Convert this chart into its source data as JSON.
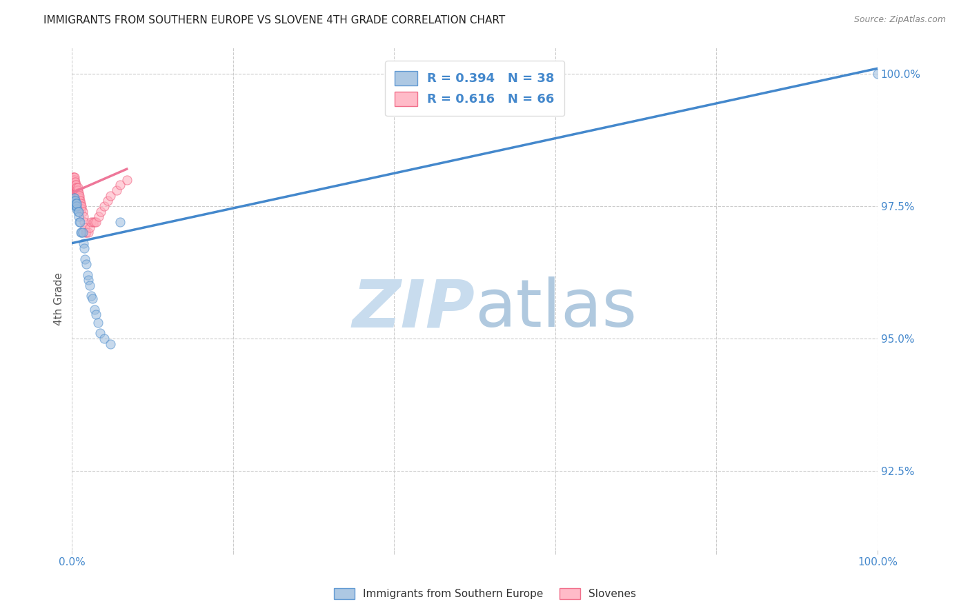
{
  "title": "IMMIGRANTS FROM SOUTHERN EUROPE VS SLOVENE 4TH GRADE CORRELATION CHART",
  "source": "Source: ZipAtlas.com",
  "ylabel_label": "4th Grade",
  "legend": {
    "blue_R": "0.394",
    "blue_N": "38",
    "pink_R": "0.616",
    "pink_N": "66"
  },
  "legend_label_blue": "Immigrants from Southern Europe",
  "legend_label_pink": "Slovenes",
  "xaxis": [
    0.0,
    1.0
  ],
  "yaxis": [
    0.91,
    1.005
  ],
  "yticks": [
    0.925,
    0.95,
    0.975,
    1.0
  ],
  "ytick_labels": [
    "92.5%",
    "95.0%",
    "97.5%",
    "100.0%"
  ],
  "xticks": [
    0.0,
    0.2,
    0.4,
    0.6,
    0.8,
    1.0
  ],
  "xtick_labels": [
    "0.0%",
    "",
    "",
    "",
    "",
    "100.0%"
  ],
  "blue_scatter_x": [
    0.001,
    0.002,
    0.002,
    0.003,
    0.003,
    0.003,
    0.004,
    0.004,
    0.005,
    0.005,
    0.006,
    0.006,
    0.006,
    0.007,
    0.008,
    0.008,
    0.009,
    0.01,
    0.011,
    0.012,
    0.013,
    0.014,
    0.015,
    0.016,
    0.018,
    0.019,
    0.02,
    0.022,
    0.024,
    0.025,
    0.028,
    0.03,
    0.032,
    0.035,
    0.04,
    0.048,
    0.06,
    1.0
  ],
  "blue_scatter_y": [
    0.9755,
    0.976,
    0.9765,
    0.9755,
    0.976,
    0.9765,
    0.975,
    0.976,
    0.975,
    0.9755,
    0.9745,
    0.975,
    0.9755,
    0.974,
    0.973,
    0.974,
    0.972,
    0.972,
    0.97,
    0.97,
    0.97,
    0.968,
    0.967,
    0.965,
    0.964,
    0.962,
    0.961,
    0.96,
    0.958,
    0.9575,
    0.9555,
    0.9545,
    0.953,
    0.951,
    0.95,
    0.949,
    0.972,
    1.0
  ],
  "pink_scatter_x": [
    0.0005,
    0.001,
    0.001,
    0.001,
    0.0015,
    0.002,
    0.002,
    0.002,
    0.002,
    0.0025,
    0.003,
    0.003,
    0.003,
    0.003,
    0.003,
    0.0035,
    0.004,
    0.004,
    0.004,
    0.004,
    0.0045,
    0.005,
    0.005,
    0.005,
    0.005,
    0.0055,
    0.006,
    0.006,
    0.006,
    0.006,
    0.007,
    0.007,
    0.007,
    0.007,
    0.008,
    0.008,
    0.008,
    0.009,
    0.009,
    0.009,
    0.01,
    0.01,
    0.011,
    0.011,
    0.012,
    0.012,
    0.013,
    0.014,
    0.015,
    0.016,
    0.017,
    0.018,
    0.02,
    0.022,
    0.024,
    0.026,
    0.028,
    0.03,
    0.033,
    0.036,
    0.04,
    0.044,
    0.048,
    0.055,
    0.06,
    0.068
  ],
  "pink_scatter_y": [
    0.98,
    0.9795,
    0.98,
    0.9805,
    0.9795,
    0.979,
    0.9795,
    0.98,
    0.9805,
    0.979,
    0.9785,
    0.979,
    0.9795,
    0.98,
    0.9805,
    0.9785,
    0.978,
    0.9785,
    0.979,
    0.9795,
    0.978,
    0.9775,
    0.978,
    0.9785,
    0.979,
    0.9775,
    0.977,
    0.9775,
    0.978,
    0.9785,
    0.977,
    0.9775,
    0.978,
    0.9785,
    0.9765,
    0.977,
    0.9775,
    0.976,
    0.9765,
    0.977,
    0.9755,
    0.976,
    0.975,
    0.9755,
    0.9745,
    0.975,
    0.974,
    0.973,
    0.972,
    0.971,
    0.97,
    0.97,
    0.97,
    0.971,
    0.972,
    0.972,
    0.972,
    0.972,
    0.973,
    0.974,
    0.975,
    0.976,
    0.977,
    0.978,
    0.979,
    0.98
  ],
  "blue_line_x": [
    0.0,
    1.0
  ],
  "blue_line_y": [
    0.968,
    1.001
  ],
  "pink_line_x": [
    0.0,
    0.068
  ],
  "pink_line_y": [
    0.9775,
    0.982
  ],
  "blue_color": "#99BBDD",
  "pink_color": "#FFAABB",
  "blue_edge_color": "#4488CC",
  "pink_edge_color": "#EE5577",
  "blue_line_color": "#4488CC",
  "pink_line_color": "#EE7799",
  "scatter_alpha": 0.55,
  "scatter_size": 90,
  "background_color": "#FFFFFF",
  "grid_color": "#CCCCCC",
  "watermark_zip_color": "#C8DCEE",
  "watermark_atlas_color": "#A8C4DC",
  "axis_color": "#4488CC",
  "title_color": "#222222"
}
